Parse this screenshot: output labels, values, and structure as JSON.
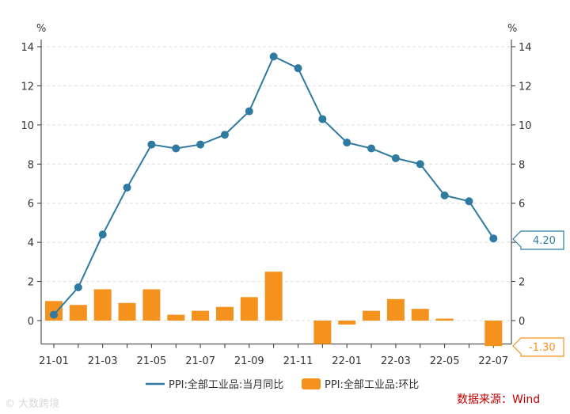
{
  "chart_data": {
    "type": "bar+line",
    "categories": [
      "21-01",
      "21-02",
      "21-03",
      "21-04",
      "21-05",
      "21-06",
      "21-07",
      "21-08",
      "21-09",
      "21-10",
      "21-11",
      "21-12",
      "22-01",
      "22-02",
      "22-03",
      "22-04",
      "22-05",
      "22-06",
      "22-07"
    ],
    "x_tick_labels": [
      "21-01",
      "21-03",
      "21-05",
      "21-07",
      "21-09",
      "21-11",
      "22-01",
      "22-03",
      "22-05",
      "22-07"
    ],
    "series": [
      {
        "name": "PPI:全部工业品:当月同比",
        "type": "line",
        "color": "#2e7aa0",
        "values": [
          0.3,
          1.7,
          4.4,
          6.8,
          9.0,
          8.8,
          9.0,
          9.5,
          10.7,
          13.5,
          12.9,
          10.3,
          9.1,
          8.8,
          8.3,
          8.0,
          6.4,
          6.1,
          4.2
        ]
      },
      {
        "name": "PPI:全部工业品:环比",
        "type": "bar",
        "color": "#f5921e",
        "values": [
          1.0,
          0.8,
          1.6,
          0.9,
          1.6,
          0.3,
          0.5,
          0.7,
          1.2,
          2.5,
          0.0,
          -1.2,
          -0.2,
          0.5,
          1.1,
          0.6,
          0.1,
          0.0,
          -1.3
        ]
      }
    ],
    "ylim": [
      -1.2,
      14
    ],
    "y_ticks": [
      0,
      2,
      4,
      6,
      8,
      10,
      12,
      14
    ],
    "left_unit": "%",
    "right_unit": "%",
    "grid": "horizontal-dashed",
    "legend_position": "bottom",
    "callouts": {
      "line_last": "4.20",
      "bar_last": "-1.30"
    }
  },
  "source_text": "数据来源：Wind",
  "watermark_text": "© 大数跨境"
}
